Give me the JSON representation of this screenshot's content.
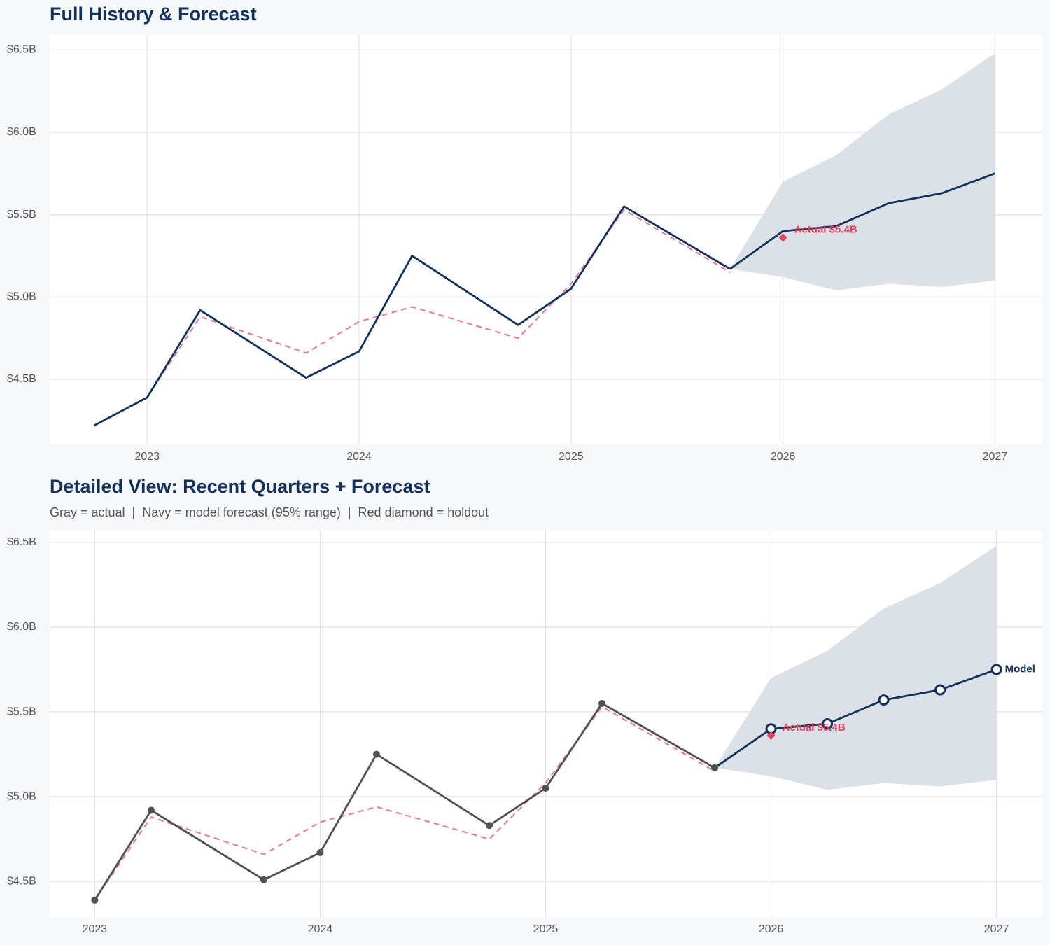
{
  "chart_data": [
    {
      "type": "line",
      "title": "Full History & Forecast",
      "xlim": [
        2022.54,
        2027.22
      ],
      "ylim": [
        4.105,
        6.59
      ],
      "xticks": [
        2023,
        2024,
        2025,
        2026,
        2027
      ],
      "yticks": [
        {
          "value": 4.5,
          "label": "$4.5B"
        },
        {
          "value": 5.0,
          "label": "$5.0B"
        },
        {
          "value": 5.5,
          "label": "$5.5B"
        },
        {
          "value": 6.0,
          "label": "$6.0B"
        },
        {
          "value": 6.5,
          "label": "$6.5B"
        }
      ],
      "grid": true,
      "band": {
        "x": [
          2025.75,
          2026,
          2026.25,
          2026.5,
          2026.75,
          2027
        ],
        "lower": [
          5.17,
          5.12,
          5.04,
          5.08,
          5.06,
          5.1
        ],
        "upper": [
          5.17,
          5.7,
          5.86,
          6.11,
          6.26,
          6.48
        ],
        "color": "#dadfe6"
      },
      "series": [
        {
          "x": [
            2023,
            2023.25,
            2023.75,
            2024,
            2024.25,
            2024.75,
            2025,
            2025.25,
            2025.75
          ],
          "values": [
            4.39,
            4.88,
            4.66,
            4.85,
            4.94,
            4.75,
            5.08,
            5.53,
            5.15
          ],
          "color": "#e8788a",
          "dash": true
        },
        {
          "x": [
            2022.75,
            2023,
            2023.25,
            2023.75,
            2024,
            2024.25,
            2024.75,
            2025,
            2025.25,
            2025.75
          ],
          "values": [
            4.22,
            4.39,
            4.92,
            4.51,
            4.67,
            5.25,
            4.83,
            5.05,
            5.55,
            5.17
          ],
          "color": "#12315a"
        },
        {
          "x": [
            2025.75,
            2026,
            2026.25,
            2026.5,
            2026.75,
            2027
          ],
          "values": [
            5.17,
            5.4,
            5.43,
            5.57,
            5.63,
            5.75
          ],
          "color": "#12315a"
        }
      ],
      "holdout": {
        "x": 2026,
        "value": 5.36,
        "label": "Actual $5.4B",
        "color": "#e0405e"
      }
    },
    {
      "type": "line",
      "title": "Detailed View: Recent Quarters + Forecast",
      "subtitle": "Gray = actual  |  Navy = model forecast (95% range)  |  Red diamond = holdout",
      "xlim": [
        2022.8,
        2027.2
      ],
      "ylim": [
        4.29,
        6.574
      ],
      "xticks": [
        2023,
        2024,
        2025,
        2026,
        2027
      ],
      "yticks": [
        {
          "value": 4.5,
          "label": "$4.5B"
        },
        {
          "value": 5.0,
          "label": "$5.0B"
        },
        {
          "value": 5.5,
          "label": "$5.5B"
        },
        {
          "value": 6.0,
          "label": "$6.0B"
        },
        {
          "value": 6.5,
          "label": "$6.5B"
        }
      ],
      "grid": true,
      "band": {
        "x": [
          2025.75,
          2026,
          2026.25,
          2026.5,
          2026.75,
          2027
        ],
        "lower": [
          5.17,
          5.12,
          5.04,
          5.08,
          5.06,
          5.1
        ],
        "upper": [
          5.17,
          5.7,
          5.86,
          6.11,
          6.26,
          6.48
        ],
        "color": "#dadfe6"
      },
      "series": [
        {
          "x": [
            2023,
            2023.25,
            2023.75,
            2024,
            2024.25,
            2024.75,
            2025,
            2025.25,
            2025.75
          ],
          "values": [
            4.39,
            4.88,
            4.66,
            4.85,
            4.94,
            4.75,
            5.08,
            5.53,
            5.15
          ],
          "color": "#e8788a",
          "dash": true
        },
        {
          "x": [
            2023,
            2023.25,
            2023.75,
            2024,
            2024.25,
            2024.75,
            2025,
            2025.25,
            2025.75
          ],
          "values": [
            4.39,
            4.92,
            4.51,
            4.67,
            5.25,
            4.83,
            5.05,
            5.55,
            5.17
          ],
          "color": "#505050",
          "marker": "filled"
        },
        {
          "name": "Model",
          "x": [
            2025.75,
            2026,
            2026.25,
            2026.5,
            2026.75,
            2027
          ],
          "values": [
            5.17,
            5.4,
            5.43,
            5.57,
            5.63,
            5.75
          ],
          "color": "#12315a",
          "marker": "open"
        }
      ],
      "holdout": {
        "x": 2026,
        "value": 5.36,
        "label": "Actual $5.4B",
        "color": "#e0405e"
      }
    }
  ]
}
